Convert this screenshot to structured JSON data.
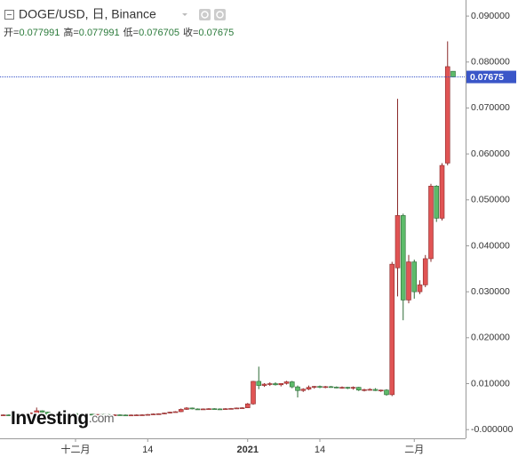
{
  "chart_data": {
    "type": "candlestick",
    "title": "DOGE/USD, 日, Binance",
    "ohlc_labels": [
      "开=",
      "高=",
      "低=",
      "收="
    ],
    "watermark": {
      "brand": "Investing",
      "suffix": ".com"
    },
    "up_color": "#e05454",
    "down_color": "#5dbb6a",
    "last_price_color": "#3a56c8",
    "categories": [
      null,
      null,
      null,
      null,
      null,
      null,
      null,
      null,
      null,
      null,
      null,
      null,
      null,
      "十二月",
      null,
      null,
      null,
      null,
      null,
      null,
      null,
      null,
      null,
      null,
      null,
      null,
      "14",
      null,
      null,
      null,
      null,
      null,
      null,
      null,
      null,
      null,
      null,
      null,
      null,
      null,
      null,
      null,
      null,
      null,
      "2021",
      null,
      null,
      null,
      null,
      null,
      null,
      null,
      null,
      null,
      null,
      null,
      null,
      "14",
      null,
      null,
      null,
      null,
      null,
      null,
      null,
      null,
      null,
      null,
      null,
      null,
      null,
      null,
      null,
      null,
      "二月",
      null,
      null,
      null,
      null,
      null,
      null,
      null
    ],
    "open": [
      0.0031,
      0.0032,
      0.00318,
      0.0033,
      0.00345,
      0.0036,
      0.00362,
      0.0041,
      0.0038,
      0.0033,
      0.00335,
      0.0034,
      0.00345,
      0.0035,
      0.0032,
      0.0033,
      0.00335,
      0.00325,
      0.0033,
      0.00328,
      0.0032,
      0.00322,
      0.00318,
      0.00315,
      0.00318,
      0.0032,
      0.00322,
      0.0033,
      0.0034,
      0.00345,
      0.0036,
      0.0038,
      0.0039,
      0.0044,
      0.0047,
      0.0045,
      0.0044,
      0.0045,
      0.00455,
      0.0045,
      0.00445,
      0.00455,
      0.0046,
      0.0047,
      0.00475,
      0.0056,
      0.0105,
      0.0096,
      0.0099,
      0.01,
      0.00975,
      0.01005,
      0.0104,
      0.0093,
      0.0085,
      0.0088,
      0.0092,
      0.0094,
      0.0092,
      0.00935,
      0.00925,
      0.00915,
      0.0092,
      0.009,
      0.0092,
      0.0086,
      0.0087,
      0.00875,
      0.0085,
      0.0086,
      0.0076,
      0.0352,
      0.0466,
      0.0282,
      0.0365,
      0.03,
      0.0315,
      0.0372,
      0.053,
      0.046,
      0.058,
      0.077991
    ],
    "high": [
      0.0033,
      0.0033,
      0.0034,
      0.00355,
      0.0037,
      0.00375,
      0.0048,
      0.0042,
      0.0039,
      0.00345,
      0.0035,
      0.00355,
      0.0036,
      0.0036,
      0.0034,
      0.00345,
      0.00345,
      0.0034,
      0.0034,
      0.00338,
      0.00332,
      0.00332,
      0.00328,
      0.00328,
      0.0033,
      0.00332,
      0.0034,
      0.0035,
      0.00355,
      0.0037,
      0.0039,
      0.004,
      0.0046,
      0.0049,
      0.0048,
      0.0046,
      0.0046,
      0.00465,
      0.00465,
      0.0046,
      0.00465,
      0.0047,
      0.0048,
      0.00485,
      0.0058,
      0.0106,
      0.0137,
      0.0101,
      0.0103,
      0.0103,
      0.0101,
      0.0106,
      0.0106,
      0.0096,
      0.009,
      0.0096,
      0.0095,
      0.0096,
      0.0095,
      0.0095,
      0.0094,
      0.0094,
      0.0093,
      0.0094,
      0.0093,
      0.0089,
      0.009,
      0.009,
      0.0087,
      0.0088,
      0.0365,
      0.072,
      0.047,
      0.038,
      0.037,
      0.0325,
      0.038,
      0.0535,
      0.0532,
      0.058,
      0.0845,
      0.077991
    ],
    "low": [
      0.003,
      0.0031,
      0.0031,
      0.0032,
      0.00335,
      0.0035,
      0.00355,
      0.0037,
      0.0031,
      0.0032,
      0.00325,
      0.0033,
      0.00335,
      0.0031,
      0.0031,
      0.0032,
      0.0032,
      0.00318,
      0.0032,
      0.00315,
      0.00312,
      0.0031,
      0.00305,
      0.00308,
      0.0031,
      0.00312,
      0.00315,
      0.00322,
      0.00332,
      0.00338,
      0.0035,
      0.0037,
      0.0038,
      0.0043,
      0.0044,
      0.0043,
      0.0043,
      0.0044,
      0.0044,
      0.00435,
      0.00435,
      0.00445,
      0.0045,
      0.0046,
      0.0047,
      0.0054,
      0.0088,
      0.0093,
      0.0095,
      0.0096,
      0.0094,
      0.0098,
      0.009,
      0.007,
      0.0082,
      0.0086,
      0.0089,
      0.009,
      0.009,
      0.0091,
      0.009,
      0.0089,
      0.0088,
      0.0087,
      0.0084,
      0.0083,
      0.0085,
      0.0084,
      0.0082,
      0.0074,
      0.0073,
      0.029,
      0.0238,
      0.0275,
      0.0285,
      0.0295,
      0.031,
      0.0365,
      0.0452,
      0.0455,
      0.0575,
      0.076705
    ],
    "close": [
      0.0032,
      0.00318,
      0.0033,
      0.00345,
      0.0036,
      0.00362,
      0.0041,
      0.0038,
      0.0033,
      0.00335,
      0.0034,
      0.00345,
      0.0035,
      0.0032,
      0.0033,
      0.00335,
      0.00325,
      0.0033,
      0.00328,
      0.0032,
      0.00322,
      0.00318,
      0.00315,
      0.00318,
      0.0032,
      0.00322,
      0.0033,
      0.0034,
      0.00345,
      0.0036,
      0.0038,
      0.0039,
      0.0044,
      0.0047,
      0.0045,
      0.0044,
      0.0045,
      0.00455,
      0.0045,
      0.00445,
      0.00455,
      0.0046,
      0.0047,
      0.00475,
      0.0056,
      0.0105,
      0.0096,
      0.0099,
      0.01,
      0.00975,
      0.01005,
      0.0104,
      0.0093,
      0.0085,
      0.0088,
      0.0092,
      0.0094,
      0.0092,
      0.00935,
      0.00925,
      0.00915,
      0.0092,
      0.009,
      0.0092,
      0.0086,
      0.0087,
      0.00875,
      0.0085,
      0.0086,
      0.0076,
      0.036,
      0.0466,
      0.0282,
      0.0365,
      0.03,
      0.0315,
      0.0372,
      0.053,
      0.046,
      0.0575,
      0.079,
      0.07675
    ],
    "ylim": [
      -0.0019,
      0.0935
    ],
    "yticks": [
      {
        "value": 0.09,
        "label": "0.090000"
      },
      {
        "value": 0.08,
        "label": "0.080000"
      },
      {
        "value": 0.07,
        "label": "0.070000"
      },
      {
        "value": 0.06,
        "label": "0.060000"
      },
      {
        "value": 0.05,
        "label": "0.050000"
      },
      {
        "value": 0.04,
        "label": "0.040000"
      },
      {
        "value": 0.03,
        "label": "0.030000"
      },
      {
        "value": 0.02,
        "label": "0.020000"
      },
      {
        "value": 0.01,
        "label": "0.010000"
      },
      {
        "value": 0,
        "label": "-0.000000"
      }
    ],
    "grid": false
  }
}
